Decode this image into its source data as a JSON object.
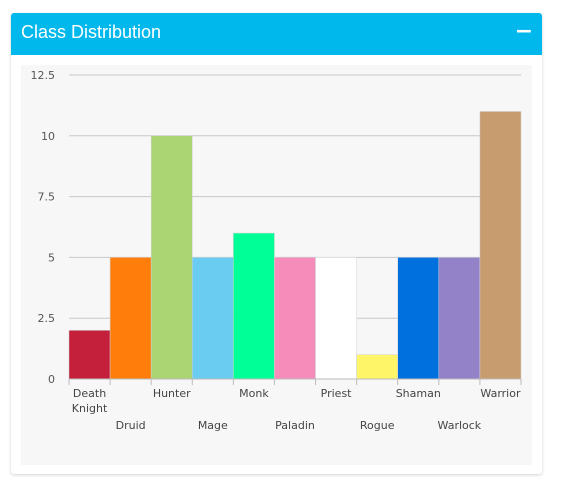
{
  "panel": {
    "title": "Class Distribution",
    "collapse_label": "−"
  },
  "chart_data": {
    "type": "bar",
    "categories": [
      "Death Knight",
      "Druid",
      "Hunter",
      "Mage",
      "Monk",
      "Paladin",
      "Priest",
      "Rogue",
      "Shaman",
      "Warlock",
      "Warrior"
    ],
    "category_label_lines": [
      [
        "Death",
        "Knight"
      ],
      [
        "Druid"
      ],
      [
        "Hunter"
      ],
      [
        "Mage"
      ],
      [
        "Monk"
      ],
      [
        "Paladin"
      ],
      [
        "Priest"
      ],
      [
        "Rogue"
      ],
      [
        "Shaman"
      ],
      [
        "Warlock"
      ],
      [
        "Warrior"
      ]
    ],
    "values": [
      2,
      5,
      10,
      5,
      6,
      5,
      5,
      1,
      5,
      5,
      11
    ],
    "colors": [
      "#c41f3b",
      "#ff7d0a",
      "#abd473",
      "#69ccf0",
      "#00ff96",
      "#f58cba",
      "#ffffff",
      "#fff569",
      "#0070de",
      "#9482c9",
      "#c79c6e"
    ],
    "ylim": [
      0,
      12.5
    ],
    "yticks": [
      0,
      2.5,
      5,
      7.5,
      10,
      12.5
    ],
    "ytick_labels": [
      "0",
      "2.5",
      "5",
      "7.5",
      "10",
      "12.5"
    ],
    "grid": true,
    "title": "",
    "xlabel": "",
    "ylabel": ""
  }
}
